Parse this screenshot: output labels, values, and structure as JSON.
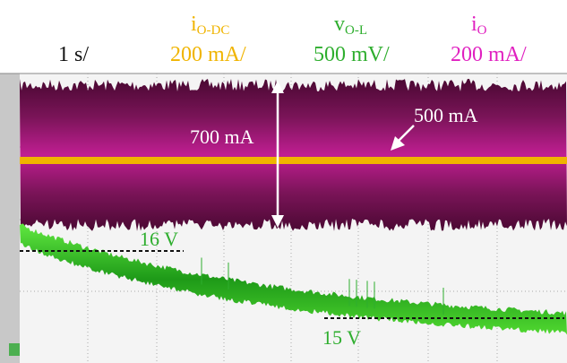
{
  "header": {
    "timebase": "1 s/",
    "channels": [
      {
        "symbol": "i",
        "subscript": "O-DC",
        "scale": "200 mA/",
        "color": "#f0b400"
      },
      {
        "symbol": "v",
        "subscript": "O-L",
        "scale": "500 mV/",
        "color": "#2eae2e"
      },
      {
        "symbol": "i",
        "subscript": "O",
        "scale": "200 mA/",
        "color": "#e020c0"
      }
    ]
  },
  "annotations": {
    "ripple": "700 mA",
    "dc": "500 mA",
    "v_high": "16 V",
    "v_low": "15 V"
  }
}
